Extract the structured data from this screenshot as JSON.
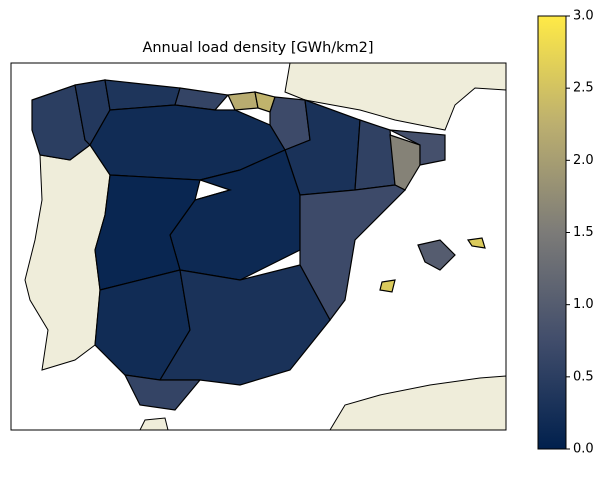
{
  "chart_data": {
    "type": "choropleth",
    "title": "Annual load density [GWh/km2]",
    "values": [
      0.5,
      0.4,
      0.35,
      0.6,
      2.2,
      2.3,
      0.7,
      0.3,
      0.55,
      1.6,
      0.8,
      0.2,
      1.5,
      0.15,
      0.7,
      0.1,
      0.2,
      0.3,
      0.6,
      1.0,
      2.6,
      2.6
    ],
    "clim": [
      0,
      3
    ],
    "colorscale": [
      "#00204d",
      "#414d6b",
      "#7c7b78",
      "#bcaf6f",
      "#ffea46"
    ],
    "cticks": [
      {
        "value": 0,
        "label": "0.0"
      },
      0.5,
      {
        "value": 1,
        "label": "1.0"
      },
      1.5,
      {
        "value": 2,
        "label": "2.0"
      },
      2.5,
      {
        "value": 3,
        "label": "3.0"
      }
    ]
  }
}
